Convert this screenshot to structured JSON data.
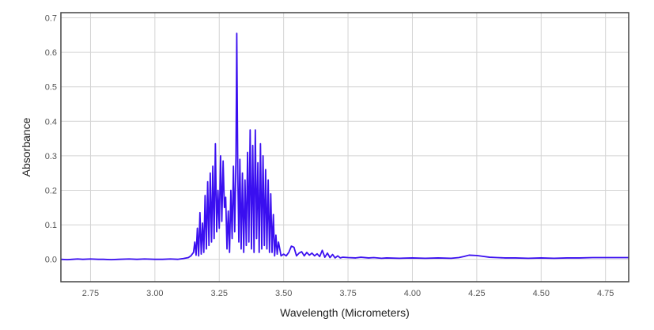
{
  "chart_data": {
    "type": "line",
    "title": "",
    "xlabel": "Wavelength (Micrometers)",
    "ylabel": "Absorbance",
    "xlim": [
      2.635,
      4.84
    ],
    "ylim": [
      -0.065,
      0.715
    ],
    "x_ticks": [
      2.75,
      3.0,
      3.25,
      3.5,
      3.75,
      4.0,
      4.25,
      4.5,
      4.75
    ],
    "x_tick_labels": [
      "2.75",
      "3.00",
      "3.25",
      "3.50",
      "3.75",
      "4.00",
      "4.25",
      "4.50",
      "4.75"
    ],
    "y_ticks": [
      0.0,
      0.1,
      0.2,
      0.3,
      0.4,
      0.5,
      0.6,
      0.7
    ],
    "y_tick_labels": [
      "0.0",
      "0.1",
      "0.2",
      "0.3",
      "0.4",
      "0.5",
      "0.6",
      "0.7"
    ],
    "grid": true,
    "legend": "none",
    "series": [
      {
        "color": "#3a0ff0",
        "x": [
          2.635,
          2.66,
          2.68,
          2.7,
          2.72,
          2.75,
          2.78,
          2.8,
          2.83,
          2.86,
          2.9,
          2.93,
          2.96,
          3.0,
          3.03,
          3.06,
          3.09,
          3.11,
          3.13,
          3.14,
          3.15,
          3.155,
          3.16,
          3.165,
          3.17,
          3.175,
          3.18,
          3.185,
          3.19,
          3.195,
          3.2,
          3.205,
          3.21,
          3.215,
          3.22,
          3.225,
          3.23,
          3.235,
          3.24,
          3.245,
          3.25,
          3.255,
          3.26,
          3.265,
          3.27,
          3.275,
          3.28,
          3.285,
          3.29,
          3.295,
          3.3,
          3.305,
          3.31,
          3.315,
          3.318,
          3.322,
          3.326,
          3.33,
          3.335,
          3.34,
          3.345,
          3.35,
          3.355,
          3.36,
          3.365,
          3.37,
          3.375,
          3.38,
          3.385,
          3.39,
          3.395,
          3.4,
          3.405,
          3.41,
          3.415,
          3.42,
          3.425,
          3.43,
          3.435,
          3.44,
          3.445,
          3.45,
          3.455,
          3.46,
          3.465,
          3.47,
          3.475,
          3.48,
          3.49,
          3.5,
          3.51,
          3.52,
          3.53,
          3.54,
          3.55,
          3.56,
          3.57,
          3.58,
          3.59,
          3.6,
          3.61,
          3.62,
          3.63,
          3.64,
          3.65,
          3.66,
          3.67,
          3.68,
          3.69,
          3.7,
          3.71,
          3.72,
          3.73,
          3.75,
          3.78,
          3.8,
          3.83,
          3.85,
          3.88,
          3.9,
          3.95,
          4.0,
          4.05,
          4.1,
          4.15,
          4.18,
          4.2,
          4.22,
          4.25,
          4.27,
          4.3,
          4.33,
          4.36,
          4.4,
          4.45,
          4.5,
          4.55,
          4.6,
          4.65,
          4.7,
          4.75,
          4.8,
          4.84
        ],
        "y": [
          0.0,
          -0.001,
          0.0,
          0.001,
          0.0,
          0.001,
          0.0,
          0.0,
          -0.001,
          0.0,
          0.001,
          0.0,
          0.001,
          0.0,
          0.0,
          0.001,
          0.0,
          0.002,
          0.005,
          0.01,
          0.02,
          0.05,
          0.012,
          0.09,
          0.01,
          0.135,
          0.015,
          0.105,
          0.02,
          0.185,
          0.03,
          0.225,
          0.04,
          0.25,
          0.05,
          0.27,
          0.06,
          0.335,
          0.08,
          0.2,
          0.09,
          0.3,
          0.11,
          0.285,
          0.15,
          0.18,
          0.03,
          0.14,
          0.02,
          0.2,
          0.06,
          0.27,
          0.08,
          0.3,
          0.655,
          0.25,
          0.05,
          0.29,
          0.03,
          0.25,
          0.02,
          0.23,
          0.04,
          0.31,
          0.05,
          0.375,
          0.03,
          0.33,
          0.02,
          0.375,
          0.06,
          0.28,
          0.02,
          0.335,
          0.03,
          0.3,
          0.04,
          0.26,
          0.03,
          0.23,
          0.02,
          0.19,
          0.02,
          0.13,
          0.01,
          0.07,
          0.015,
          0.05,
          0.01,
          0.015,
          0.01,
          0.02,
          0.038,
          0.035,
          0.01,
          0.018,
          0.022,
          0.01,
          0.02,
          0.012,
          0.018,
          0.01,
          0.016,
          0.008,
          0.026,
          0.006,
          0.018,
          0.005,
          0.014,
          0.004,
          0.01,
          0.004,
          0.006,
          0.005,
          0.004,
          0.006,
          0.004,
          0.005,
          0.003,
          0.004,
          0.003,
          0.004,
          0.003,
          0.004,
          0.003,
          0.005,
          0.008,
          0.012,
          0.011,
          0.009,
          0.006,
          0.005,
          0.004,
          0.004,
          0.003,
          0.004,
          0.003,
          0.004,
          0.004,
          0.005,
          0.005,
          0.005,
          0.005
        ]
      }
    ]
  }
}
